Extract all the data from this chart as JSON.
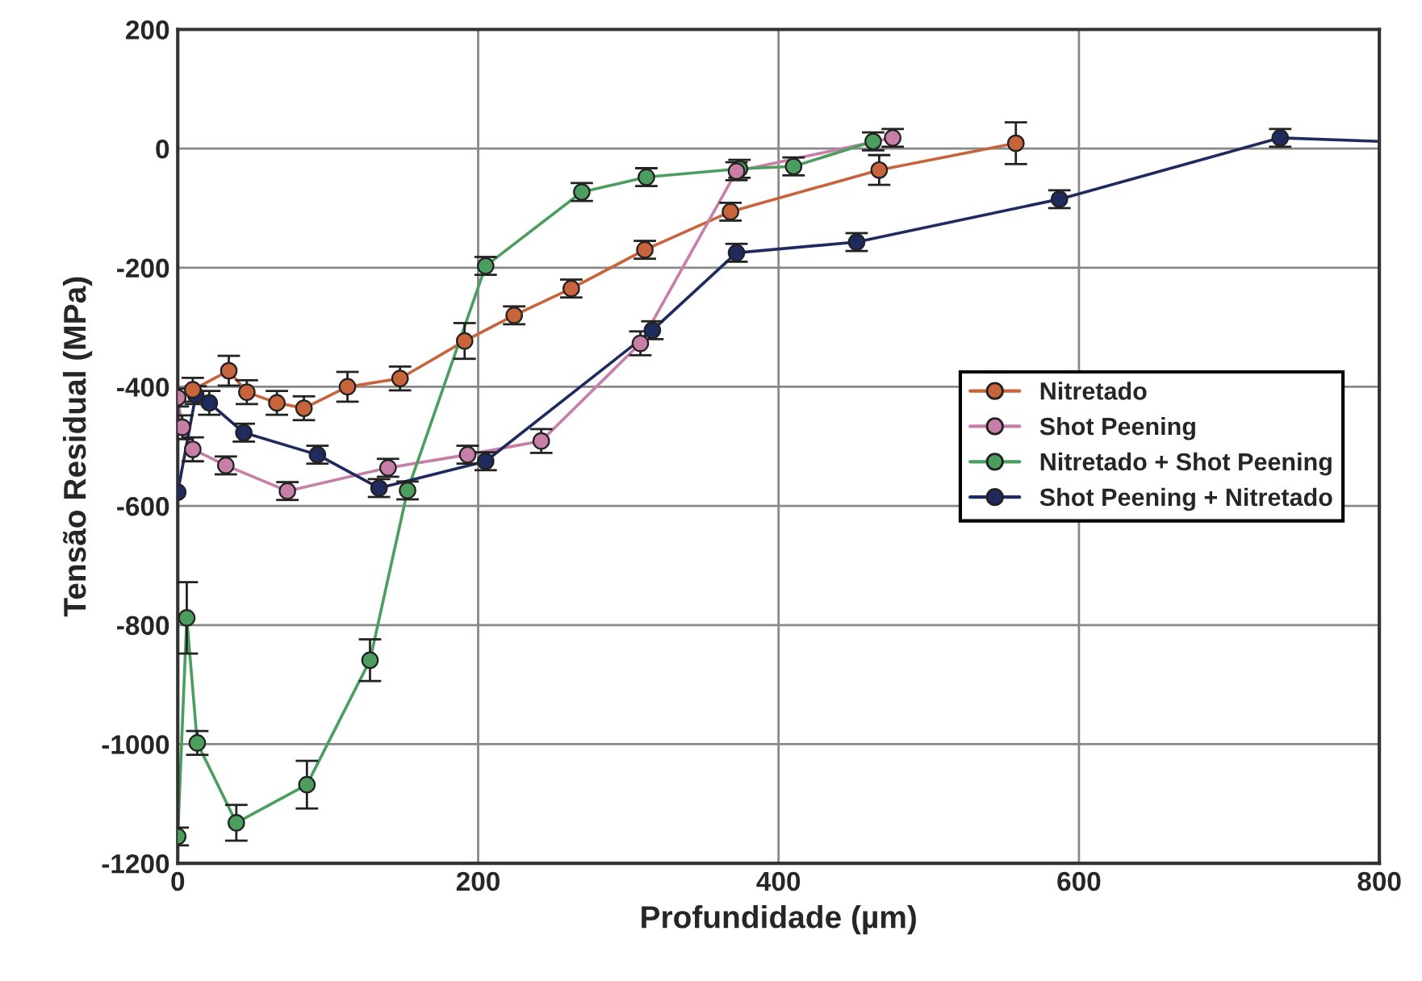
{
  "chart_data": {
    "type": "line",
    "xlabel": "Profundidade (µm)",
    "ylabel": "Tensão Residual (MPa)",
    "xlim": [
      0,
      800
    ],
    "ylim": [
      -1200,
      200
    ],
    "xticks": [
      0,
      200,
      400,
      600,
      800
    ],
    "yticks": [
      -1200,
      -1000,
      -800,
      -600,
      -400,
      -200,
      0,
      200
    ],
    "grid": true,
    "legend": "right",
    "marker": "circle",
    "series": [
      {
        "name": "Nitretado",
        "color": "#c8643c",
        "x": [
          10,
          34,
          46,
          66,
          84,
          113,
          148,
          191,
          224,
          262,
          311,
          368,
          467,
          558
        ],
        "values": [
          -405,
          -373,
          -409,
          -427,
          -436,
          -400,
          -386,
          -323,
          -280,
          -235,
          -170,
          -106,
          -36,
          9
        ],
        "errors": [
          20,
          25,
          20,
          20,
          20,
          25,
          20,
          30,
          15,
          15,
          15,
          15,
          25,
          35
        ]
      },
      {
        "name": "Shot Peening",
        "color": "#c77fa8",
        "x": [
          0,
          3,
          10,
          32,
          73,
          140,
          193,
          242,
          308,
          372,
          476
        ],
        "values": [
          -418,
          -468,
          -505,
          -532,
          -575,
          -536,
          -514,
          -491,
          -327,
          -38,
          18
        ],
        "errors": [
          15,
          20,
          20,
          15,
          15,
          15,
          15,
          20,
          20,
          15,
          15
        ]
      },
      {
        "name": "Nitretado + Shot Peening",
        "color": "#4c9e5e",
        "x": [
          0,
          6,
          13,
          39,
          86,
          128,
          153,
          205,
          269,
          312,
          374,
          410,
          463
        ],
        "values": [
          -1155,
          -788,
          -998,
          -1132,
          -1068,
          -859,
          -574,
          -197,
          -73,
          -48,
          -34,
          -30,
          12
        ],
        "errors": [
          15,
          60,
          20,
          30,
          40,
          35,
          15,
          15,
          15,
          15,
          15,
          15,
          15
        ]
      },
      {
        "name": "Shot Peening + Nitretado",
        "color": "#1f2a5e",
        "x": [
          0,
          12,
          21,
          44,
          93,
          134,
          205,
          316,
          372,
          452,
          587,
          734
        ],
        "values": [
          -577,
          -414,
          -427,
          -477,
          -514,
          -570,
          -525,
          -305,
          -175,
          -157,
          -85,
          18
        ],
        "errors": [
          null,
          15,
          20,
          15,
          15,
          15,
          15,
          15,
          15,
          15,
          15,
          15
        ]
      },
      {
        "color": "#1f2a5e",
        "x": [
          734,
          800
        ],
        "values": [
          18,
          12
        ],
        "marker": "none"
      }
    ]
  }
}
